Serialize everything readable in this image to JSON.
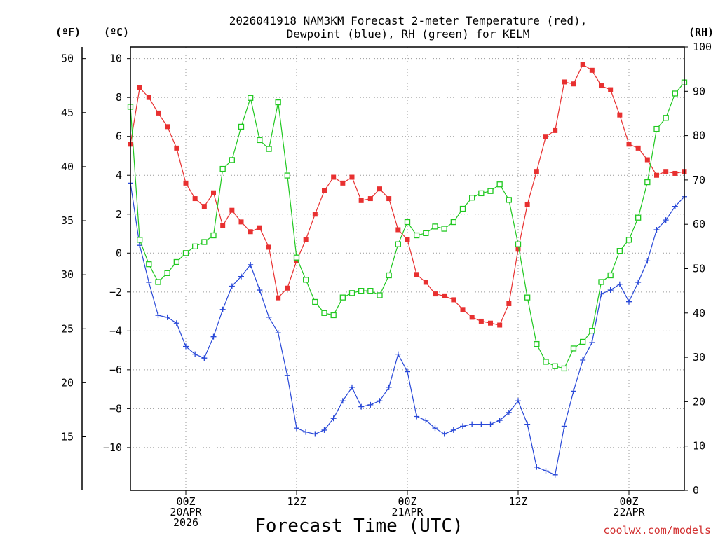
{
  "chart_data": {
    "type": "line",
    "title_lines": [
      "2026041918 NAM3KM Forecast 2-meter Temperature (red),",
      "Dewpoint (blue), RH (green) for KELM"
    ],
    "xlabel": "Forecast Time (UTC)",
    "credit": "coolwx.com/models",
    "axis_units": {
      "fahrenheit": "(ºF)",
      "celsius": "(ºC)",
      "rh": "(RH)"
    },
    "celsius_axis": {
      "min": -12.2,
      "max": 10.6,
      "ticks": [
        10,
        8,
        6,
        4,
        2,
        0,
        -2,
        -4,
        -6,
        -8,
        -10
      ],
      "tick_labels": [
        "10",
        "8",
        "6",
        "4",
        "2",
        "0",
        "−2",
        "−4",
        "−6",
        "−8",
        "−10"
      ]
    },
    "fahrenheit_axis": {
      "ticks": [
        50,
        45,
        40,
        35,
        30,
        25,
        20,
        15
      ],
      "tick_labels": [
        "50",
        "45",
        "40",
        "35",
        "30",
        "25",
        "20",
        "15"
      ]
    },
    "rh_axis": {
      "min": 0,
      "max": 100,
      "ticks": [
        0,
        10,
        20,
        30,
        40,
        50,
        60,
        70,
        80,
        90,
        100
      ],
      "tick_labels": [
        "0",
        "10",
        "20",
        "30",
        "40",
        "50",
        "60",
        "70",
        "80",
        "90",
        "100"
      ]
    },
    "x_axis": {
      "min_hour": 0,
      "max_hour": 60,
      "ticks": [
        {
          "hour": 6,
          "lines": [
            "00Z",
            "20APR",
            "2026"
          ]
        },
        {
          "hour": 18,
          "lines": [
            "12Z"
          ]
        },
        {
          "hour": 30,
          "lines": [
            "00Z",
            "21APR"
          ]
        },
        {
          "hour": 42,
          "lines": [
            "12Z"
          ]
        },
        {
          "hour": 54,
          "lines": [
            "00Z",
            "22APR"
          ]
        }
      ]
    },
    "series": [
      {
        "name": "Temperature",
        "unit": "C",
        "axis": "celsius",
        "color": "#e83030",
        "marker": "filled-square",
        "values": [
          5.6,
          8.5,
          8.0,
          7.2,
          6.5,
          5.4,
          3.6,
          2.8,
          2.4,
          3.1,
          1.4,
          2.2,
          1.6,
          1.1,
          1.3,
          0.3,
          -2.3,
          -1.8,
          -0.4,
          0.7,
          2.0,
          3.2,
          3.9,
          3.6,
          3.9,
          2.7,
          2.8,
          3.3,
          2.8,
          1.2,
          0.7,
          -1.1,
          -1.5,
          -2.1,
          -2.2,
          -2.4,
          -2.9,
          -3.3,
          -3.5,
          -3.6,
          -3.7,
          -2.6,
          0.2,
          2.5,
          4.2,
          6.0,
          6.3,
          8.8,
          8.7,
          9.7,
          9.4,
          8.6,
          8.4,
          7.1,
          5.6,
          5.4,
          4.8,
          4.0,
          4.2,
          4.1,
          4.2
        ]
      },
      {
        "name": "Dewpoint",
        "unit": "C",
        "axis": "celsius",
        "color": "#2848d8",
        "marker": "plus",
        "values": [
          3.6,
          0.4,
          -1.5,
          -3.2,
          -3.3,
          -3.6,
          -4.8,
          -5.2,
          -5.4,
          -4.3,
          -2.9,
          -1.7,
          -1.2,
          -0.6,
          -1.9,
          -3.3,
          -4.1,
          -6.3,
          -9.0,
          -9.2,
          -9.3,
          -9.1,
          -8.5,
          -7.6,
          -6.9,
          -7.9,
          -7.8,
          -7.6,
          -6.9,
          -5.2,
          -6.1,
          -8.4,
          -8.6,
          -9.0,
          -9.3,
          -9.1,
          -8.9,
          -8.8,
          -8.8,
          -8.8,
          -8.6,
          -8.2,
          -7.6,
          -8.8,
          -11.0,
          -11.2,
          -11.4,
          -8.9,
          -7.1,
          -5.5,
          -4.6,
          -2.1,
          -1.9,
          -1.6,
          -2.5,
          -1.5,
          -0.4,
          1.2,
          1.7,
          2.4,
          2.9
        ]
      },
      {
        "name": "Relative Humidity",
        "unit": "%",
        "axis": "rh",
        "color": "#20c820",
        "marker": "open-square",
        "values": [
          86.5,
          56.5,
          51.0,
          47.0,
          49.0,
          51.5,
          53.5,
          55.0,
          56.0,
          57.5,
          72.5,
          74.5,
          82.0,
          88.5,
          79.0,
          77.0,
          87.5,
          71.0,
          52.5,
          47.5,
          42.5,
          40.0,
          39.5,
          43.5,
          44.5,
          45.0,
          45.0,
          44.0,
          48.5,
          55.5,
          60.5,
          57.5,
          58.0,
          59.5,
          59.0,
          60.5,
          63.5,
          66.0,
          67.0,
          67.5,
          69.0,
          65.5,
          55.5,
          43.5,
          33.0,
          29.0,
          28.0,
          27.5,
          32.0,
          33.5,
          36.0,
          47.0,
          48.5,
          54.0,
          56.5,
          61.5,
          69.5,
          81.5,
          84.0,
          89.5,
          92.0
        ]
      }
    ]
  }
}
